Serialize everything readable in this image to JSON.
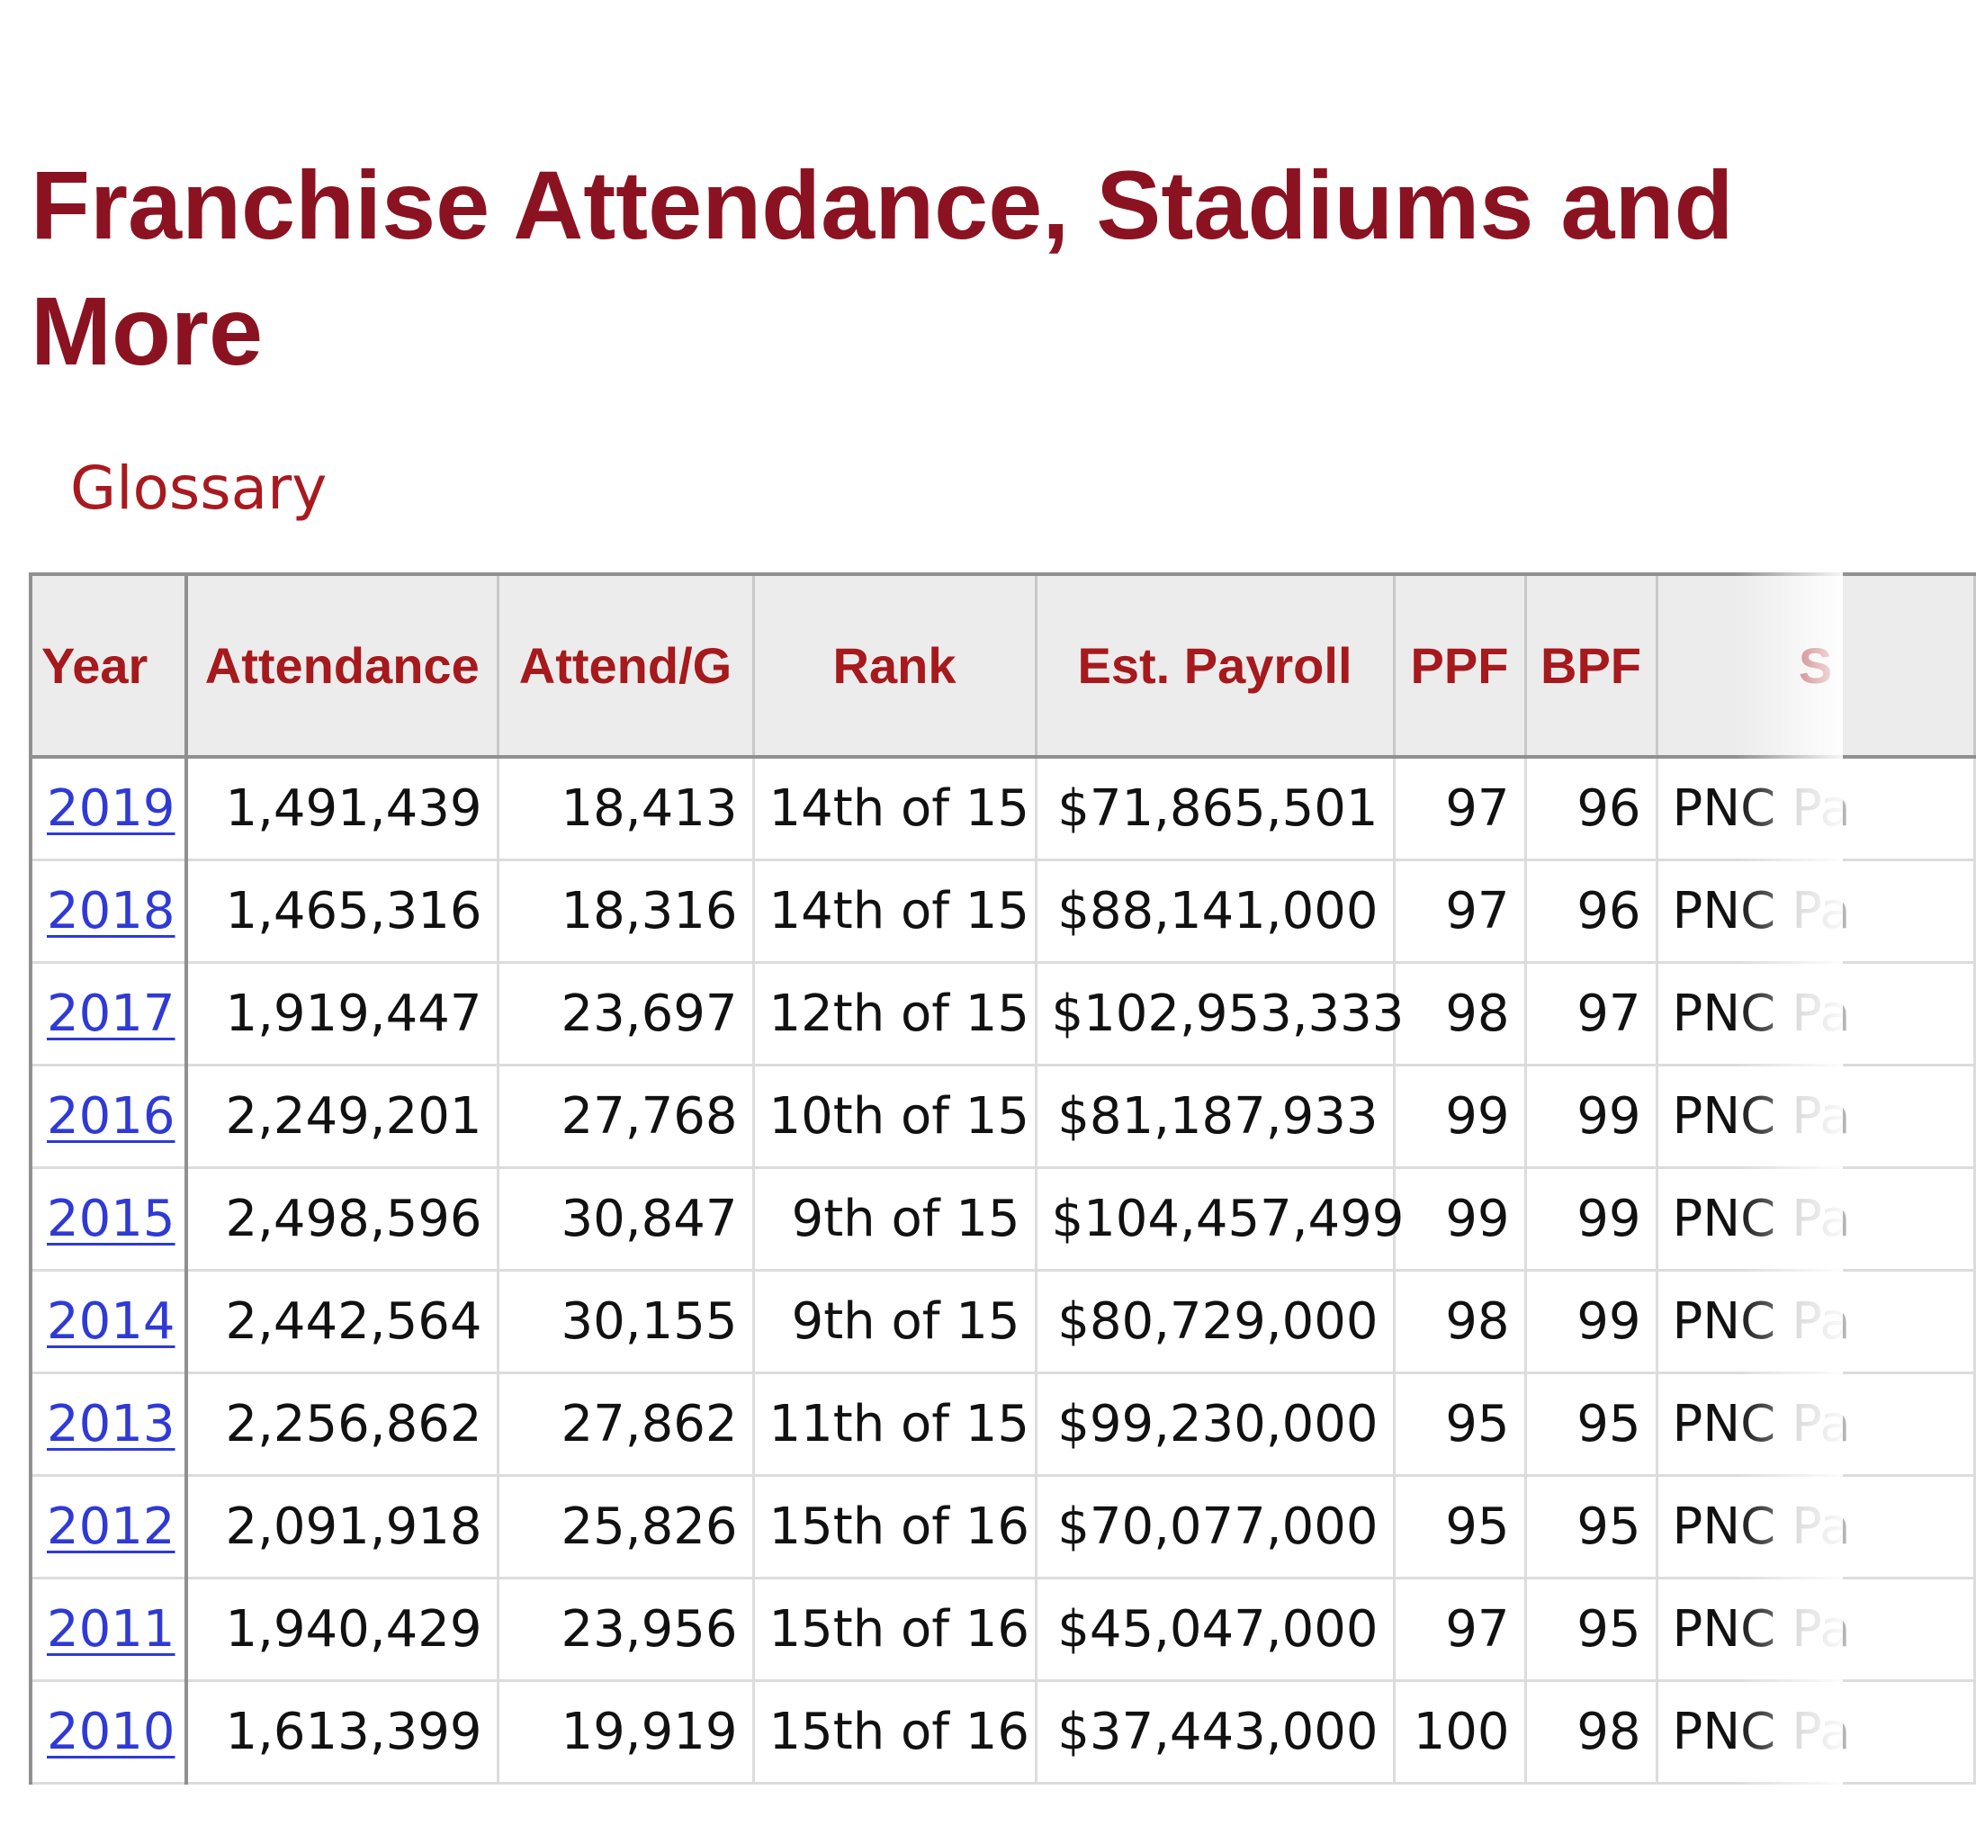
{
  "page": {
    "title": "Franchise Attendance, Stadiums and More",
    "glossary_label": "Glossary"
  },
  "table": {
    "headers": {
      "year": "Year",
      "attendance": "Attendance",
      "attend_per_game": "Attend/G",
      "rank": "Rank",
      "est_payroll": "Est. Payroll",
      "ppf": "PPF",
      "bpf": "BPF",
      "stadium": "S"
    },
    "rows": [
      {
        "year": "2019",
        "attendance": "1,491,439",
        "attend_per_game": "18,413",
        "rank": "14th of 15",
        "est_payroll": "$71,865,501",
        "ppf": "97",
        "bpf": "96",
        "stadium_start": "PNC",
        "stadium_rest": "Pa"
      },
      {
        "year": "2018",
        "attendance": "1,465,316",
        "attend_per_game": "18,316",
        "rank": "14th of 15",
        "est_payroll": "$88,141,000",
        "ppf": "97",
        "bpf": "96",
        "stadium_start": "PNC",
        "stadium_rest": "Pa"
      },
      {
        "year": "2017",
        "attendance": "1,919,447",
        "attend_per_game": "23,697",
        "rank": "12th of 15",
        "est_payroll": "$102,953,333",
        "ppf": "98",
        "bpf": "97",
        "stadium_start": "PNC",
        "stadium_rest": "Pa"
      },
      {
        "year": "2016",
        "attendance": "2,249,201",
        "attend_per_game": "27,768",
        "rank": "10th of 15",
        "est_payroll": "$81,187,933",
        "ppf": "99",
        "bpf": "99",
        "stadium_start": "PNC",
        "stadium_rest": "Pa"
      },
      {
        "year": "2015",
        "attendance": "2,498,596",
        "attend_per_game": "30,847",
        "rank": "9th of 15",
        "est_payroll": "$104,457,499",
        "ppf": "99",
        "bpf": "99",
        "stadium_start": "PNC",
        "stadium_rest": "Pa"
      },
      {
        "year": "2014",
        "attendance": "2,442,564",
        "attend_per_game": "30,155",
        "rank": "9th of 15",
        "est_payroll": "$80,729,000",
        "ppf": "98",
        "bpf": "99",
        "stadium_start": "PNC",
        "stadium_rest": "Pa"
      },
      {
        "year": "2013",
        "attendance": "2,256,862",
        "attend_per_game": "27,862",
        "rank": "11th of 15",
        "est_payroll": "$99,230,000",
        "ppf": "95",
        "bpf": "95",
        "stadium_start": "PNC",
        "stadium_rest": "Pa"
      },
      {
        "year": "2012",
        "attendance": "2,091,918",
        "attend_per_game": "25,826",
        "rank": "15th of 16",
        "est_payroll": "$70,077,000",
        "ppf": "95",
        "bpf": "95",
        "stadium_start": "PNC",
        "stadium_rest": "Pa"
      },
      {
        "year": "2011",
        "attendance": "1,940,429",
        "attend_per_game": "23,956",
        "rank": "15th of 16",
        "est_payroll": "$45,047,000",
        "ppf": "97",
        "bpf": "95",
        "stadium_start": "PNC",
        "stadium_rest": "Pa"
      },
      {
        "year": "2010",
        "attendance": "1,613,399",
        "attend_per_game": "19,919",
        "rank": "15th of 16",
        "est_payroll": "$37,443,000",
        "ppf": "100",
        "bpf": "98",
        "stadium_start": "PNC",
        "stadium_rest": "Pa"
      }
    ]
  },
  "colors": {
    "title": "#8b1321",
    "header_text": "#a6191c",
    "link": "#2f3ad6",
    "header_bg": "#ececec"
  }
}
